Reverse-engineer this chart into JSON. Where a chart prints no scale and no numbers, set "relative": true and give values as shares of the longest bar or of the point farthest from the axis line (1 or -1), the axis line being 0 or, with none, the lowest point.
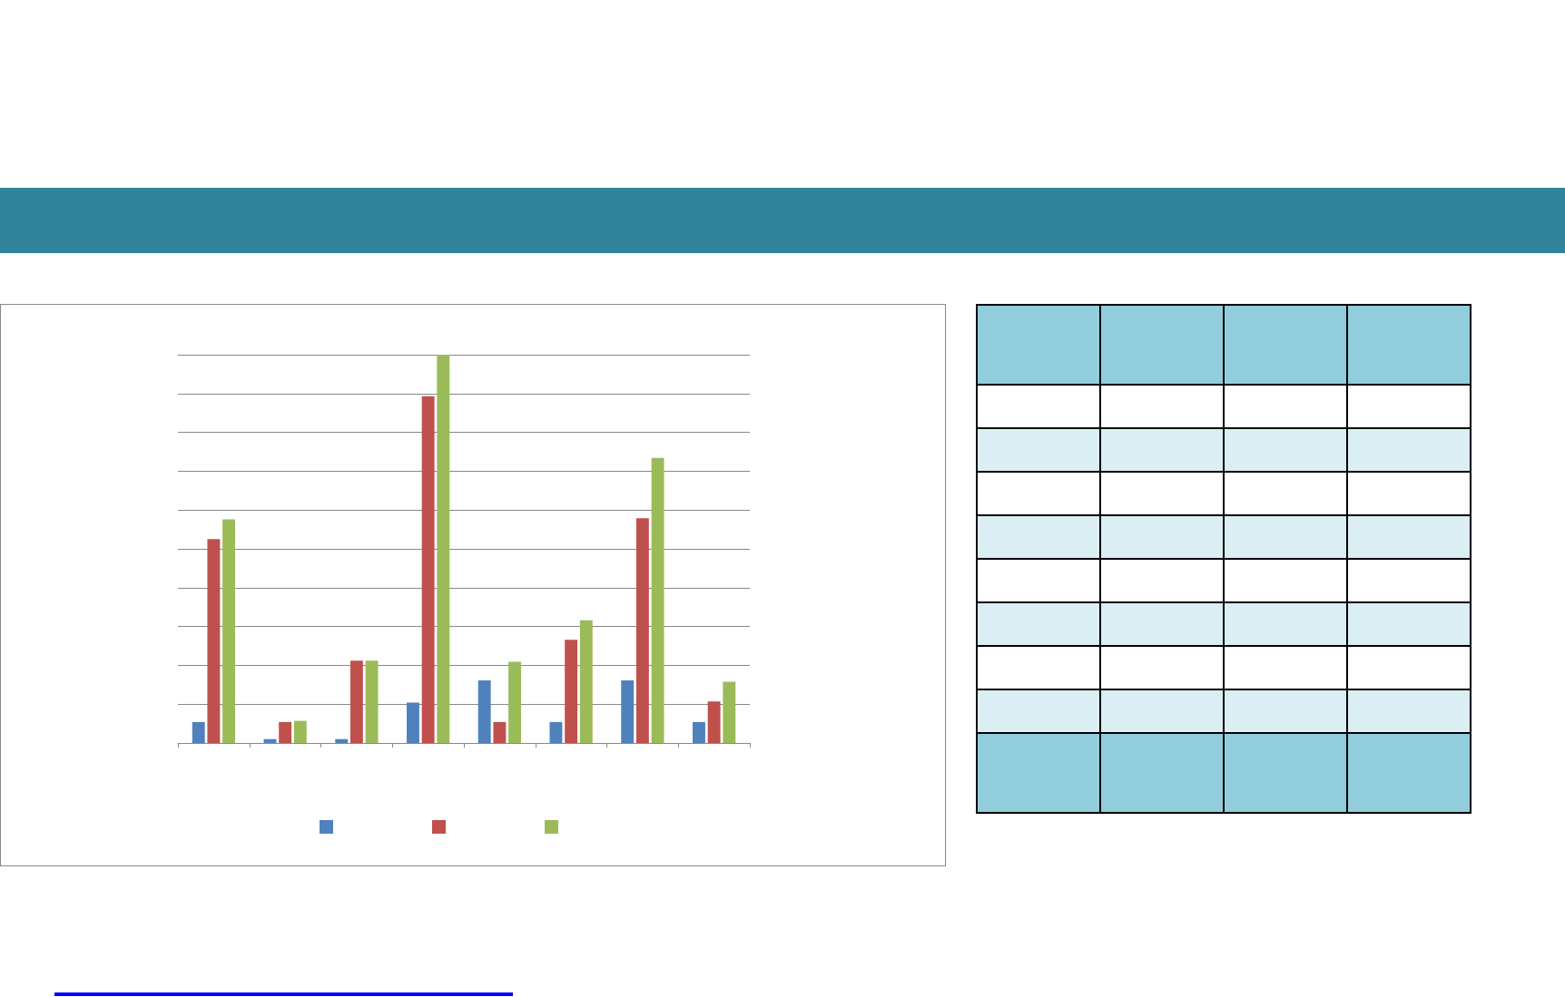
{
  "chart_data": {
    "type": "bar",
    "relative": true,
    "grid": true,
    "categories": [
      null,
      null,
      null,
      null,
      null,
      null,
      null,
      null
    ],
    "series": [
      {
        "color": "#4f81bd",
        "values": [
          0.054,
          0.01,
          0.01,
          0.104,
          0.161,
          0.054,
          0.161,
          0.054
        ]
      },
      {
        "color": "#c0504d",
        "values": [
          0.525,
          0.054,
          0.212,
          0.893,
          0.054,
          0.266,
          0.579,
          0.107
        ]
      },
      {
        "color": "#9bbb59",
        "values": [
          0.576,
          0.057,
          0.212,
          1,
          0.209,
          0.316,
          0.734,
          0.158
        ]
      }
    ]
  }
}
